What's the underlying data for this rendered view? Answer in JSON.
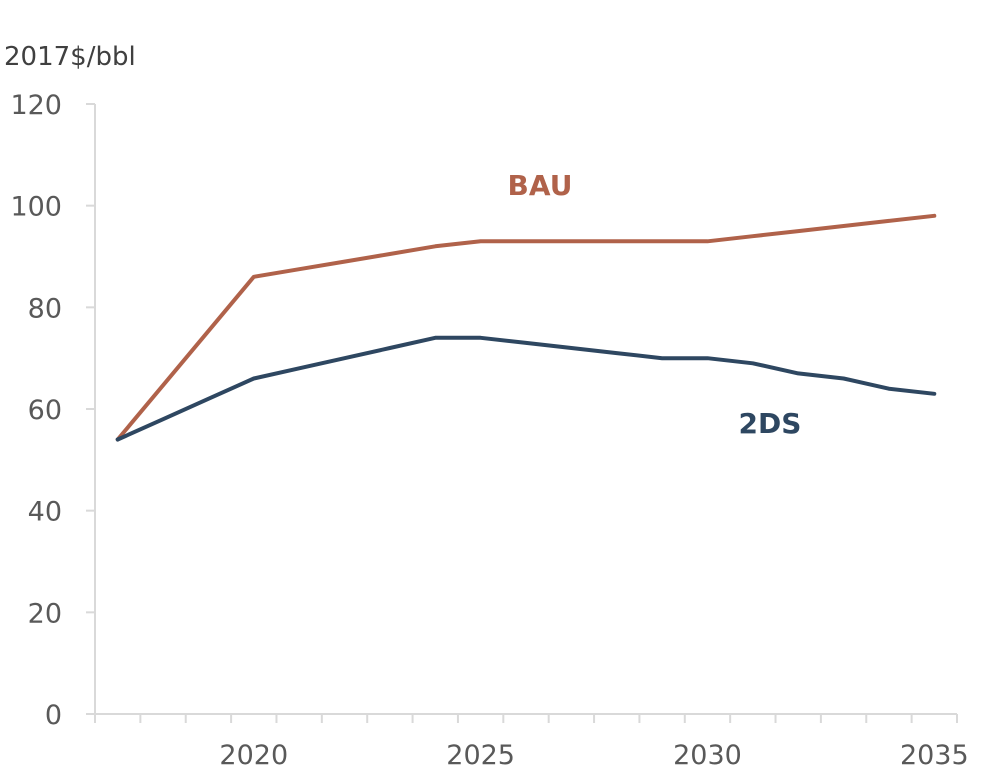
{
  "chart_data": {
    "type": "line",
    "ylabel": "2017$/bbl",
    "ylim": [
      0,
      120
    ],
    "yticks": [
      0,
      20,
      40,
      60,
      80,
      100,
      120
    ],
    "xlim": [
      2016.5,
      2035.5
    ],
    "xticks_labeled": [
      2020,
      2025,
      2030,
      2035
    ],
    "grid": false,
    "series": [
      {
        "name": "BAU",
        "color": "#b0624a",
        "x": [
          2017,
          2020,
          2021,
          2022,
          2023,
          2024,
          2025,
          2026,
          2027,
          2028,
          2029,
          2030,
          2031,
          2032,
          2033,
          2034,
          2035
        ],
        "values": [
          54,
          86,
          87.5,
          89,
          90.5,
          92,
          93,
          93,
          93,
          93,
          93,
          93,
          94,
          95,
          96,
          97,
          98
        ]
      },
      {
        "name": "2DS",
        "color": "#2e4761",
        "x": [
          2017,
          2018,
          2019,
          2020,
          2021,
          2022,
          2023,
          2024,
          2025,
          2026,
          2027,
          2028,
          2029,
          2030,
          2031,
          2032,
          2033,
          2034,
          2035
        ],
        "values": [
          54,
          58,
          62,
          66,
          68,
          70,
          72,
          74,
          74,
          73,
          72,
          71,
          70,
          70,
          69,
          67,
          66,
          64,
          63
        ]
      }
    ]
  }
}
